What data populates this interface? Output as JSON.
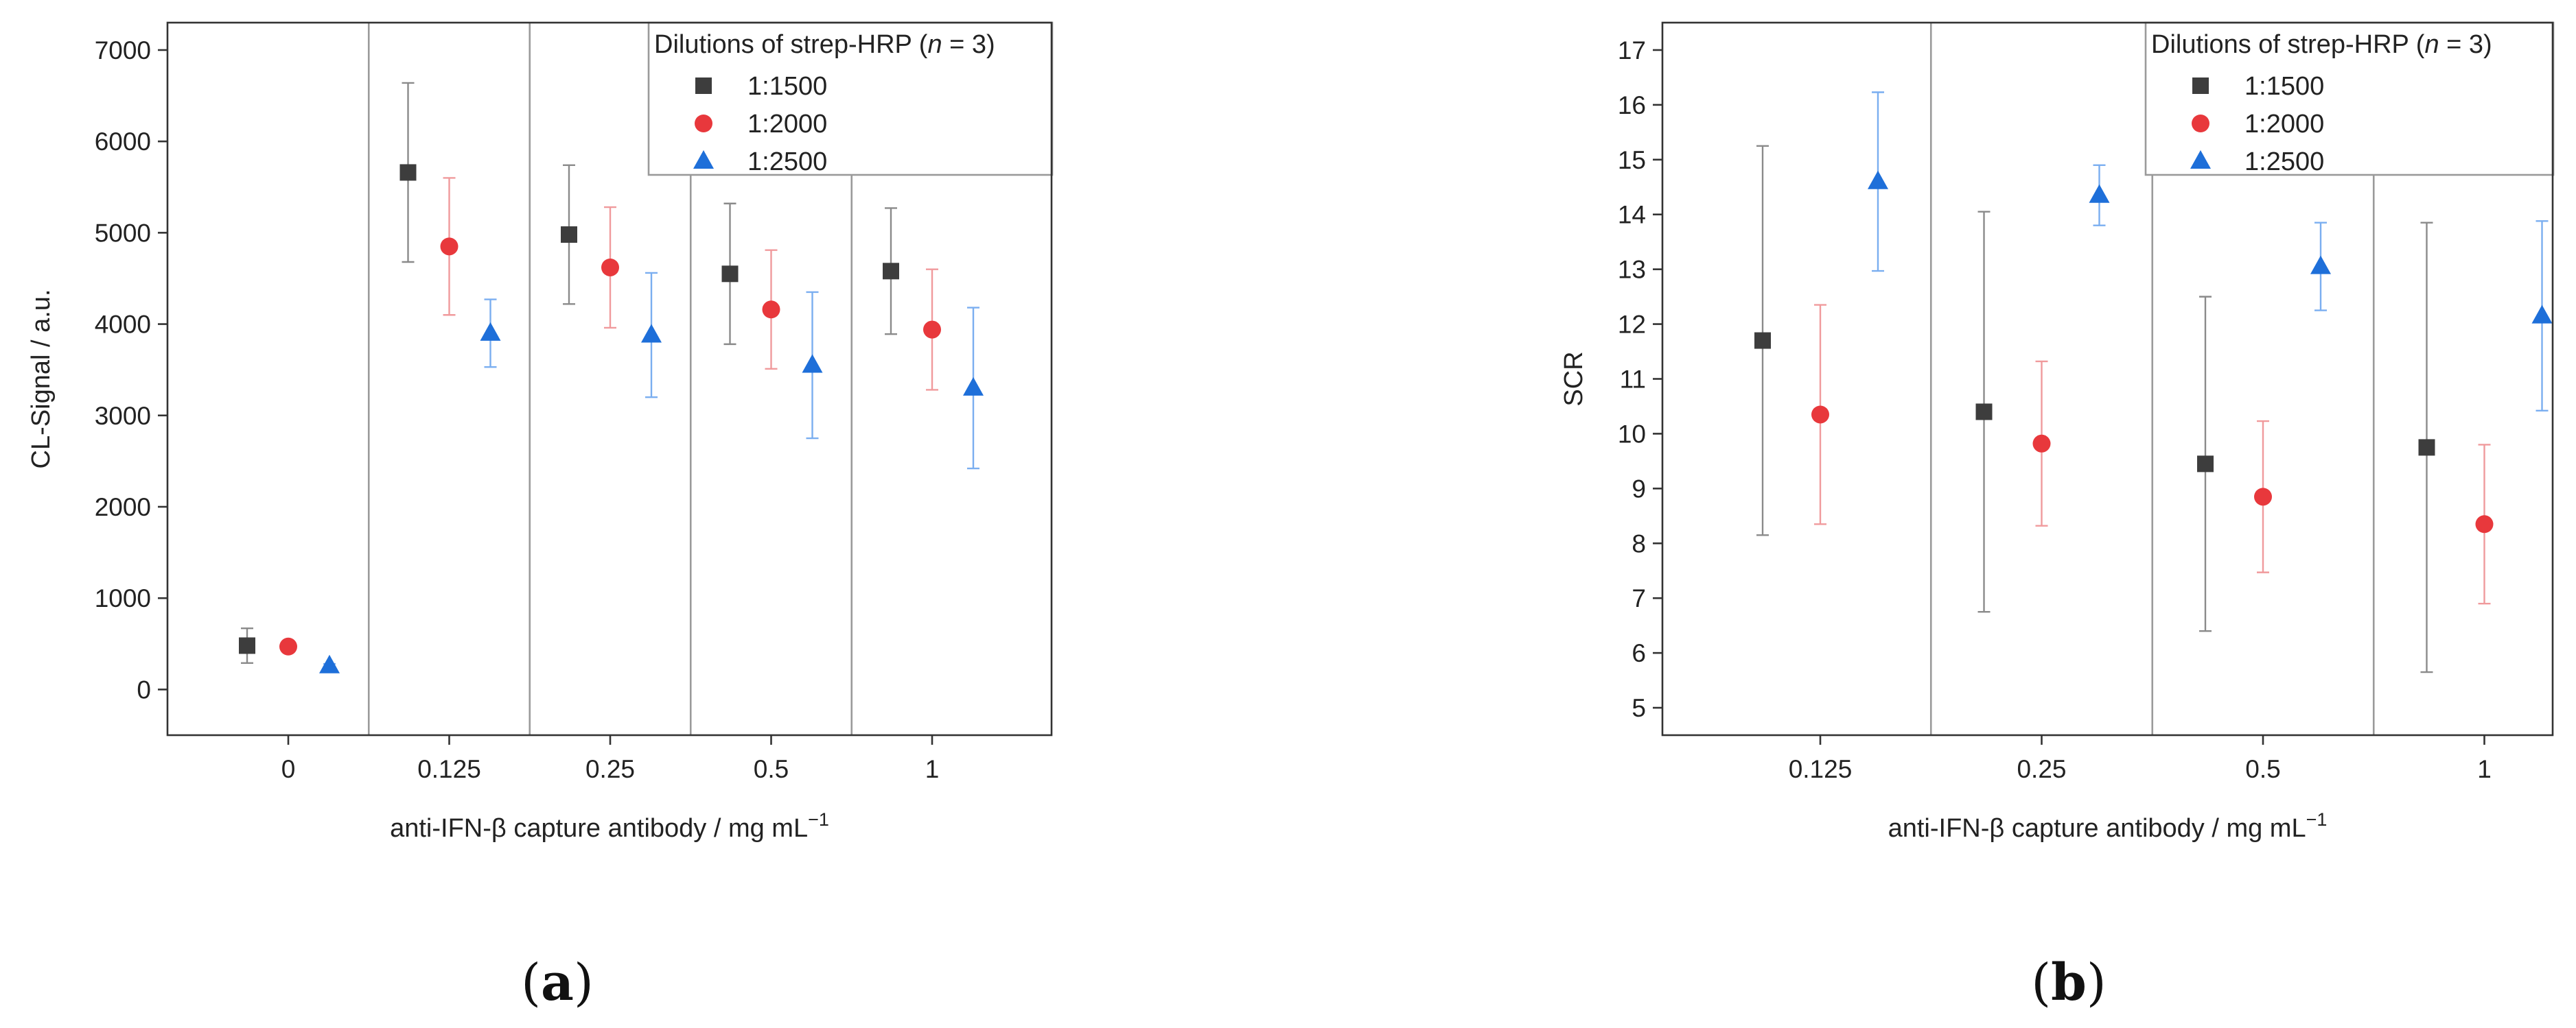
{
  "chart_data": [
    {
      "type": "scatter",
      "panel_label": "a",
      "title": "",
      "xlabel": "anti-IFN-β capture antibody / mg  mL",
      "xlabel_superscript": "−1",
      "ylabel": "CL-Signal / a.u.",
      "categories": [
        "0",
        "0.125",
        "0.25",
        "0.5",
        "1"
      ],
      "ylim": [
        -500,
        7300
      ],
      "yticks": [
        0,
        1000,
        2000,
        3000,
        4000,
        5000,
        6000,
        7000
      ],
      "category_separators": true,
      "legend": {
        "title": "Dilutions of strep-HRP (",
        "title_italic": "n",
        "title_tail": " = 3)",
        "position": "top-right"
      },
      "series": [
        {
          "name": "1:1500",
          "marker": "square",
          "color": "#3d3d3d",
          "error_color": "#8a8a8a",
          "values": [
            480,
            5660,
            4980,
            4550,
            4580
          ],
          "errors": [
            190,
            980,
            760,
            770,
            690
          ]
        },
        {
          "name": "1:2000",
          "marker": "circle",
          "color": "#e8383c",
          "error_color": "#f09a9c",
          "values": [
            470,
            4850,
            4620,
            4160,
            3940
          ],
          "errors": [
            40,
            750,
            660,
            650,
            660
          ]
        },
        {
          "name": "1:2500",
          "marker": "triangle",
          "color": "#1e6fd9",
          "error_color": "#7aaef0",
          "values": [
            260,
            3900,
            3880,
            3550,
            3300
          ],
          "errors": [
            20,
            370,
            680,
            800,
            880
          ]
        }
      ]
    },
    {
      "type": "scatter",
      "panel_label": "b",
      "title": "",
      "xlabel": "anti-IFN-β capture antibody / mg mL",
      "xlabel_superscript": "−1",
      "ylabel": "SCR",
      "categories": [
        "0.125",
        "0.25",
        "0.5",
        "1"
      ],
      "ylim": [
        4.5,
        17.5
      ],
      "yticks": [
        5,
        6,
        7,
        8,
        9,
        10,
        11,
        12,
        13,
        14,
        15,
        16,
        17
      ],
      "category_separators": true,
      "legend": {
        "title": "Dilutions of strep-HRP (",
        "title_italic": "n",
        "title_tail": " = 3)",
        "position": "top-right"
      },
      "series": [
        {
          "name": "1:1500",
          "marker": "square",
          "color": "#3d3d3d",
          "error_color": "#8a8a8a",
          "values": [
            11.7,
            10.4,
            9.45,
            9.75
          ],
          "errors": [
            3.55,
            3.65,
            3.05,
            4.1
          ]
        },
        {
          "name": "1:2000",
          "marker": "circle",
          "color": "#e8383c",
          "error_color": "#f09a9c",
          "values": [
            10.35,
            9.82,
            8.85,
            8.35
          ],
          "errors": [
            2.0,
            1.5,
            1.38,
            1.45
          ]
        },
        {
          "name": "1:2500",
          "marker": "triangle",
          "color": "#1e6fd9",
          "error_color": "#7aaef0",
          "values": [
            14.6,
            14.35,
            13.05,
            12.15
          ],
          "errors": [
            1.63,
            0.55,
            0.8,
            1.73
          ]
        }
      ]
    }
  ]
}
